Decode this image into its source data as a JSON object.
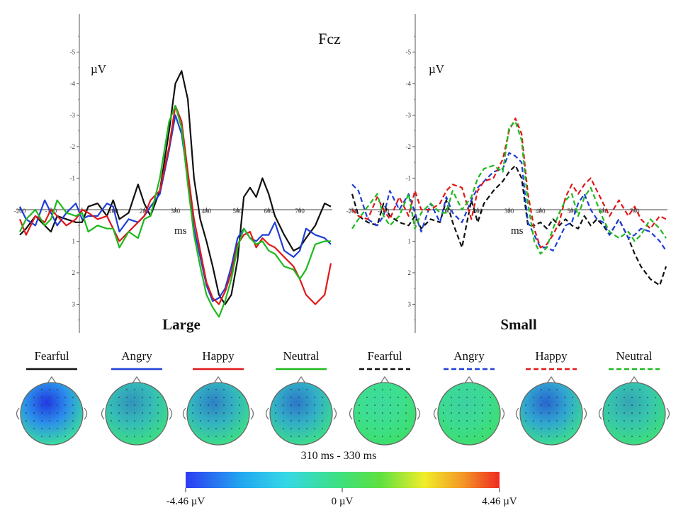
{
  "figure_title": "Fcz",
  "chart_data": [
    {
      "type": "line",
      "panel": "Large",
      "ylabel": "µV",
      "xlabel": "ms",
      "xlim": [
        -200,
        800
      ],
      "ylim": [
        -6,
        4
      ],
      "y_inverted": true,
      "x_ticks": [
        "-200",
        "-100",
        "0",
        "100",
        "200",
        "300",
        "400",
        "500",
        "600",
        "700"
      ],
      "y_ticks": [
        "-5",
        "-4",
        "-3",
        "-2",
        "-1",
        "1",
        "2",
        "3"
      ],
      "series": [
        {
          "name": "Fearful",
          "color": "#111111",
          "dashed": false,
          "x": [
            -200,
            -180,
            -150,
            -120,
            -100,
            -80,
            -50,
            -20,
            0,
            20,
            50,
            80,
            100,
            120,
            150,
            180,
            200,
            220,
            250,
            280,
            300,
            320,
            340,
            360,
            380,
            400,
            420,
            440,
            460,
            480,
            500,
            520,
            540,
            560,
            580,
            600,
            620,
            650,
            680,
            700,
            720,
            750,
            780,
            800
          ],
          "y": [
            0.8,
            0.6,
            0.2,
            0.5,
            0.7,
            0.2,
            0.3,
            0.4,
            0.4,
            -0.1,
            -0.2,
            0.2,
            -0.3,
            0.3,
            0.1,
            -0.8,
            -0.2,
            0.2,
            -0.6,
            -2.5,
            -4.0,
            -4.4,
            -3.5,
            -1.0,
            0.3,
            1.0,
            1.8,
            2.7,
            3.0,
            2.7,
            1.6,
            -0.4,
            -0.7,
            -0.4,
            -1.0,
            -0.5,
            0.2,
            0.8,
            1.3,
            1.2,
            0.9,
            0.5,
            -0.2,
            -0.1
          ]
        },
        {
          "name": "Angry",
          "color": "#1f3fd6",
          "dashed": false,
          "x": [
            -200,
            -180,
            -150,
            -120,
            -100,
            -80,
            -50,
            -20,
            0,
            20,
            50,
            80,
            100,
            120,
            150,
            180,
            200,
            220,
            250,
            280,
            300,
            320,
            340,
            360,
            380,
            400,
            420,
            440,
            460,
            480,
            500,
            520,
            540,
            560,
            580,
            600,
            620,
            650,
            680,
            700,
            720,
            750,
            780,
            800
          ],
          "y": [
            -0.1,
            0.3,
            0.5,
            -0.3,
            0.1,
            0.5,
            0.1,
            -0.2,
            0.3,
            0.2,
            0.2,
            -0.2,
            -0.1,
            0.7,
            0.3,
            0.4,
            0.2,
            -0.1,
            -0.5,
            -1.9,
            -3.0,
            -2.4,
            -1.0,
            0.6,
            1.5,
            2.4,
            2.9,
            2.8,
            2.5,
            1.8,
            0.9,
            0.6,
            0.9,
            1.0,
            0.8,
            0.8,
            0.4,
            1.3,
            1.5,
            1.3,
            0.6,
            0.8,
            0.9,
            1.1
          ]
        },
        {
          "name": "Happy",
          "color": "#e01818",
          "dashed": false,
          "x": [
            -200,
            -180,
            -150,
            -120,
            -100,
            -80,
            -50,
            -20,
            0,
            20,
            50,
            80,
            100,
            120,
            150,
            180,
            200,
            220,
            250,
            280,
            300,
            320,
            340,
            360,
            380,
            400,
            420,
            440,
            460,
            480,
            500,
            520,
            540,
            560,
            580,
            600,
            620,
            650,
            680,
            700,
            720,
            750,
            780,
            800
          ],
          "y": [
            0.3,
            0.8,
            0.2,
            0.4,
            0.0,
            0.2,
            0.5,
            0.3,
            0.0,
            0.1,
            0.3,
            0.2,
            0.6,
            1.0,
            0.7,
            0.4,
            0.2,
            -0.3,
            -0.6,
            -2.0,
            -3.3,
            -2.8,
            -1.2,
            0.3,
            1.3,
            2.3,
            2.8,
            3.0,
            2.6,
            2.0,
            1.1,
            0.8,
            0.7,
            1.2,
            0.9,
            1.1,
            1.2,
            1.5,
            1.8,
            2.2,
            2.7,
            3.0,
            2.7,
            1.7
          ]
        },
        {
          "name": "Neutral",
          "color": "#1eb91e",
          "dashed": false,
          "x": [
            -200,
            -180,
            -150,
            -120,
            -100,
            -80,
            -50,
            -20,
            0,
            20,
            50,
            80,
            100,
            120,
            150,
            180,
            200,
            220,
            250,
            280,
            300,
            320,
            340,
            360,
            380,
            400,
            420,
            440,
            460,
            480,
            500,
            520,
            540,
            560,
            580,
            600,
            620,
            650,
            680,
            700,
            720,
            750,
            780,
            800
          ],
          "y": [
            0.7,
            0.3,
            0.0,
            0.5,
            0.3,
            -0.3,
            0.1,
            0.2,
            0.1,
            0.7,
            0.5,
            0.6,
            0.6,
            1.2,
            0.7,
            0.9,
            0.3,
            0.2,
            -1.0,
            -2.8,
            -3.3,
            -2.6,
            -0.8,
            0.8,
            1.8,
            2.7,
            3.1,
            3.4,
            2.9,
            2.2,
            1.2,
            0.6,
            0.9,
            1.1,
            1.0,
            1.3,
            1.4,
            1.8,
            1.9,
            2.2,
            1.9,
            1.1,
            1.0,
            1.0
          ]
        }
      ]
    },
    {
      "type": "line",
      "panel": "Small",
      "ylabel": "µV",
      "xlabel": "ms",
      "xlim": [
        -200,
        800
      ],
      "ylim": [
        -6,
        4
      ],
      "y_inverted": true,
      "x_ticks": [
        "-200",
        "-100",
        "0",
        "100",
        "200",
        "300",
        "400",
        "500",
        "600",
        "700"
      ],
      "y_ticks": [
        "-5",
        "-4",
        "-3",
        "-2",
        "-1",
        "1",
        "2",
        "3"
      ],
      "series": [
        {
          "name": "Fearful",
          "color": "#111111",
          "dashed": true,
          "x": [
            -200,
            -180,
            -150,
            -120,
            -100,
            -80,
            -50,
            -20,
            0,
            20,
            50,
            80,
            100,
            120,
            150,
            180,
            200,
            220,
            250,
            280,
            300,
            320,
            340,
            360,
            380,
            400,
            420,
            440,
            460,
            480,
            500,
            520,
            540,
            560,
            580,
            600,
            620,
            650,
            680,
            700,
            720,
            750,
            780,
            800
          ],
          "y": [
            -0.5,
            0.2,
            0.4,
            0.5,
            -0.2,
            0.2,
            0.4,
            0.5,
            0.2,
            0.6,
            0.3,
            0.4,
            -0.3,
            0.4,
            1.2,
            -0.3,
            0.4,
            -0.2,
            -0.6,
            -0.9,
            -1.2,
            -1.4,
            -1.0,
            0.5,
            0.5,
            0.4,
            0.6,
            0.3,
            0.5,
            0.3,
            0.5,
            0.6,
            0.2,
            0.5,
            0.3,
            0.5,
            0.8,
            0.3,
            0.9,
            1.4,
            1.8,
            2.2,
            2.4,
            1.8
          ]
        },
        {
          "name": "Angry",
          "color": "#1f3fd6",
          "dashed": true,
          "x": [
            -200,
            -180,
            -150,
            -120,
            -100,
            -80,
            -50,
            -20,
            0,
            20,
            50,
            80,
            100,
            120,
            150,
            180,
            200,
            220,
            250,
            280,
            300,
            320,
            340,
            360,
            380,
            400,
            420,
            440,
            460,
            480,
            500,
            520,
            540,
            560,
            580,
            600,
            620,
            650,
            680,
            700,
            720,
            750,
            780,
            800
          ],
          "y": [
            -0.8,
            -0.6,
            0.3,
            0.5,
            0.2,
            -0.6,
            0.0,
            -0.5,
            0.1,
            0.7,
            -0.2,
            0.4,
            -0.4,
            0.1,
            0.4,
            -0.3,
            -0.7,
            -0.9,
            -1.2,
            -1.3,
            -1.8,
            -1.7,
            -1.5,
            0.4,
            0.8,
            1.2,
            1.2,
            1.3,
            0.9,
            0.5,
            0.4,
            -0.2,
            -0.5,
            0.0,
            0.3,
            0.4,
            0.8,
            0.3,
            0.9,
            0.8,
            0.6,
            0.7,
            1.0,
            1.3
          ]
        },
        {
          "name": "Happy",
          "color": "#e01818",
          "dashed": true,
          "x": [
            -200,
            -180,
            -150,
            -120,
            -100,
            -80,
            -50,
            -20,
            0,
            20,
            50,
            80,
            100,
            120,
            150,
            180,
            200,
            220,
            250,
            280,
            300,
            320,
            340,
            360,
            380,
            400,
            420,
            440,
            460,
            480,
            500,
            520,
            540,
            560,
            580,
            600,
            620,
            650,
            680,
            700,
            720,
            750,
            780,
            800
          ],
          "y": [
            0.0,
            0.2,
            0.3,
            -0.4,
            0.0,
            0.3,
            -0.4,
            0.2,
            -0.6,
            0.0,
            0.0,
            -0.2,
            -0.6,
            -0.8,
            -0.7,
            0.3,
            -0.6,
            -0.9,
            -1.0,
            -1.6,
            -2.5,
            -2.9,
            -2.4,
            -0.5,
            0.6,
            1.2,
            1.1,
            0.8,
            0.4,
            -0.4,
            -0.8,
            -0.5,
            -0.8,
            -1.0,
            -0.6,
            -0.2,
            0.2,
            -0.3,
            0.2,
            -0.1,
            0.3,
            0.6,
            0.2,
            0.3
          ]
        },
        {
          "name": "Neutral",
          "color": "#1eb91e",
          "dashed": true,
          "x": [
            -200,
            -180,
            -150,
            -120,
            -100,
            -80,
            -50,
            -20,
            0,
            20,
            50,
            80,
            100,
            120,
            150,
            180,
            200,
            220,
            250,
            280,
            300,
            320,
            340,
            360,
            380,
            400,
            420,
            440,
            460,
            480,
            500,
            520,
            540,
            560,
            580,
            600,
            620,
            650,
            680,
            700,
            720,
            750,
            780,
            800
          ],
          "y": [
            0.6,
            0.3,
            -0.1,
            -0.5,
            0.2,
            0.5,
            0.2,
            -0.5,
            0.6,
            0.1,
            -0.2,
            0.1,
            0.1,
            -0.6,
            0.0,
            -0.4,
            -1.0,
            -1.3,
            -1.4,
            -1.2,
            -2.6,
            -2.8,
            -2.2,
            -0.2,
            1.0,
            1.4,
            1.2,
            0.6,
            0.1,
            -0.3,
            -0.5,
            0.2,
            -0.4,
            -0.7,
            -0.2,
            0.3,
            0.7,
            0.9,
            0.7,
            1.0,
            0.8,
            0.3,
            0.6,
            0.9
          ]
        }
      ]
    }
  ],
  "legend": [
    {
      "label": "Fearful",
      "color": "#111111",
      "dashed": false,
      "map_intensity": 0.95
    },
    {
      "label": "Angry",
      "color": "#1f3fd6",
      "dashed": false,
      "map_intensity": 0.45
    },
    {
      "label": "Happy",
      "color": "#e01818",
      "dashed": false,
      "map_intensity": 0.55
    },
    {
      "label": "Neutral",
      "color": "#1eb91e",
      "dashed": false,
      "map_intensity": 0.6
    },
    {
      "label": "Fearful",
      "color": "#111111",
      "dashed": true,
      "map_intensity": 0.05
    },
    {
      "label": "Angry",
      "color": "#1f3fd6",
      "dashed": true,
      "map_intensity": 0.1
    },
    {
      "label": "Happy",
      "color": "#e01818",
      "dashed": true,
      "map_intensity": 0.7
    },
    {
      "label": "Neutral",
      "color": "#1eb91e",
      "dashed": true,
      "map_intensity": 0.35
    }
  ],
  "time_window": "310 ms - 330 ms",
  "colorbar": {
    "min_label": "-4.46 µV",
    "mid_label": "0 µV",
    "max_label": "4.46 µV"
  }
}
